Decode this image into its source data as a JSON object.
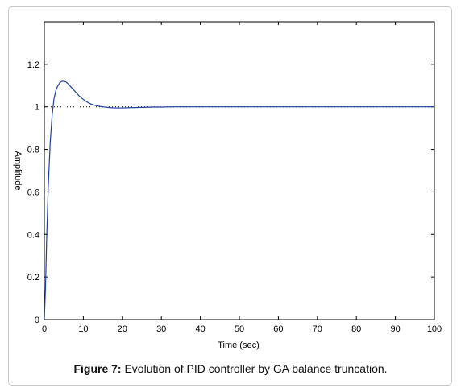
{
  "chart_data": {
    "type": "line",
    "xlabel": "Time (sec)",
    "ylabel": "Amplitude",
    "xlim": [
      0,
      100
    ],
    "ylim": [
      0,
      1.4
    ],
    "xticks": [
      0,
      10,
      20,
      30,
      40,
      50,
      60,
      70,
      80,
      90,
      100
    ],
    "yticks": [
      0,
      0.2,
      0.4,
      0.6,
      0.8,
      1,
      1.2
    ],
    "grid": false,
    "series": [
      {
        "x": [
          0,
          0.3,
          0.6,
          1,
          1.5,
          2,
          2.5,
          3,
          3.5,
          4,
          4.5,
          5,
          5.5,
          6,
          7,
          8,
          9,
          10,
          11,
          12,
          13,
          14,
          15,
          16,
          17,
          18,
          19,
          20,
          22,
          24,
          26,
          28,
          30,
          33,
          40,
          50,
          60,
          70,
          80,
          90,
          100
        ],
        "y": [
          0,
          0.15,
          0.38,
          0.62,
          0.83,
          0.96,
          1.04,
          1.08,
          1.1,
          1.115,
          1.12,
          1.12,
          1.118,
          1.11,
          1.09,
          1.07,
          1.05,
          1.035,
          1.022,
          1.013,
          1.007,
          1.003,
          1.0,
          0.998,
          0.996,
          0.995,
          0.995,
          0.995,
          0.996,
          0.997,
          0.998,
          0.999,
          0.999,
          1.0,
          1.0,
          1.0,
          1.0,
          1.0,
          1.0,
          1.0,
          1.0
        ],
        "color": "#1f3f9f"
      }
    ],
    "reference_line": {
      "y": 1,
      "style": "dotted",
      "color": "#000000"
    }
  },
  "caption": {
    "label": "Figure 7:",
    "text": " Evolution of PID controller by GA balance truncation."
  }
}
